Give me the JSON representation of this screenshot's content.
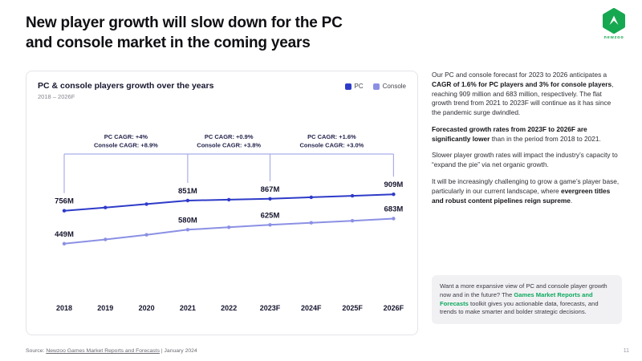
{
  "page": {
    "title_line1": "New player growth will slow down for the PC",
    "title_line2": "and console market in the coming years",
    "page_number": "11"
  },
  "logo": {
    "brand": "newzoo",
    "green": "#15A850"
  },
  "chart_data": {
    "type": "line",
    "title": "PC & console players growth over the years",
    "subtitle": "2018 – 2026F",
    "categories": [
      "2018",
      "2019",
      "2020",
      "2021",
      "2022",
      "2023F",
      "2024F",
      "2025F",
      "2026F"
    ],
    "series": [
      {
        "name": "PC",
        "color": "#2E3BC8",
        "values": [
          756,
          786,
          818,
          851,
          859,
          867,
          881,
          895,
          909
        ],
        "point_labels": [
          "756M",
          "",
          "",
          "851M",
          "",
          "867M",
          "",
          "",
          "909M"
        ]
      },
      {
        "name": "Console",
        "color": "#8B90E4",
        "values": [
          449,
          489,
          532,
          580,
          602,
          625,
          644,
          663,
          683
        ],
        "point_labels": [
          "449M",
          "",
          "",
          "580M",
          "",
          "625M",
          "",
          "",
          "683M"
        ]
      }
    ],
    "annotations": [
      {
        "from": "2018",
        "to": "2021",
        "lines": [
          "PC CAGR: +4%",
          "Console CAGR: +8.9%"
        ]
      },
      {
        "from": "2021",
        "to": "2023F",
        "lines": [
          "PC CAGR: +0.9%",
          "Console CAGR: +3.8%"
        ]
      },
      {
        "from": "2023F",
        "to": "2026F",
        "lines": [
          "PC CAGR: +1.6%",
          "Console CAGR: +3.0%"
        ]
      }
    ],
    "bracket_color": "#A9ADEA",
    "unit": "M players",
    "ylim": [
      400,
      960
    ],
    "grid": false,
    "legend_position": "top-right"
  },
  "commentary": {
    "paragraphs": [
      {
        "segments": [
          {
            "t": "Our PC and console forecast for 2023 to 2026 anticipates a ",
            "b": false
          },
          {
            "t": "CAGR of 1.6% for PC players and 3% for console players",
            "b": true
          },
          {
            "t": ", reaching 909 million and 683 million, respectively. The flat growth trend from 2021 to 2023F will continue as it has since the pandemic surge dwindled.",
            "b": false
          }
        ]
      },
      {
        "segments": [
          {
            "t": "Forecasted growth rates from 2023F to 2026F are significantly lower",
            "b": true
          },
          {
            "t": " than in the period from 2018 to 2021.",
            "b": false
          }
        ]
      },
      {
        "segments": [
          {
            "t": "Slower player growth rates will impact the industry’s capacity to “expand the pie” via net organic growth.",
            "b": false
          }
        ]
      },
      {
        "segments": [
          {
            "t": "It will be increasingly challenging to grow a game’s player base, particularly in our current landscape, where ",
            "b": false
          },
          {
            "t": "evergreen titles and robust content pipelines reign supreme",
            "b": true
          },
          {
            "t": ".",
            "b": false
          }
        ]
      }
    ]
  },
  "promo": {
    "segments": [
      {
        "t": "Want a more expansive view of PC and console player growth now and in the future? The ",
        "b": false
      },
      {
        "t": "Games Market Reports and Forecasts",
        "b": true,
        "link": true
      },
      {
        "t": " toolkit gives you actionable data, forecasts, and trends to make smarter and bolder strategic decisions.",
        "b": false
      }
    ]
  },
  "footer": {
    "source_prefix": "Source: ",
    "source_link": "Newzoo Games Market Reports and Forecasts",
    "source_suffix": " | January 2024"
  },
  "colors": {
    "accent_green": "#0CA95C",
    "pc_blue": "#2E3BC8",
    "console_purple": "#8B90E4"
  }
}
